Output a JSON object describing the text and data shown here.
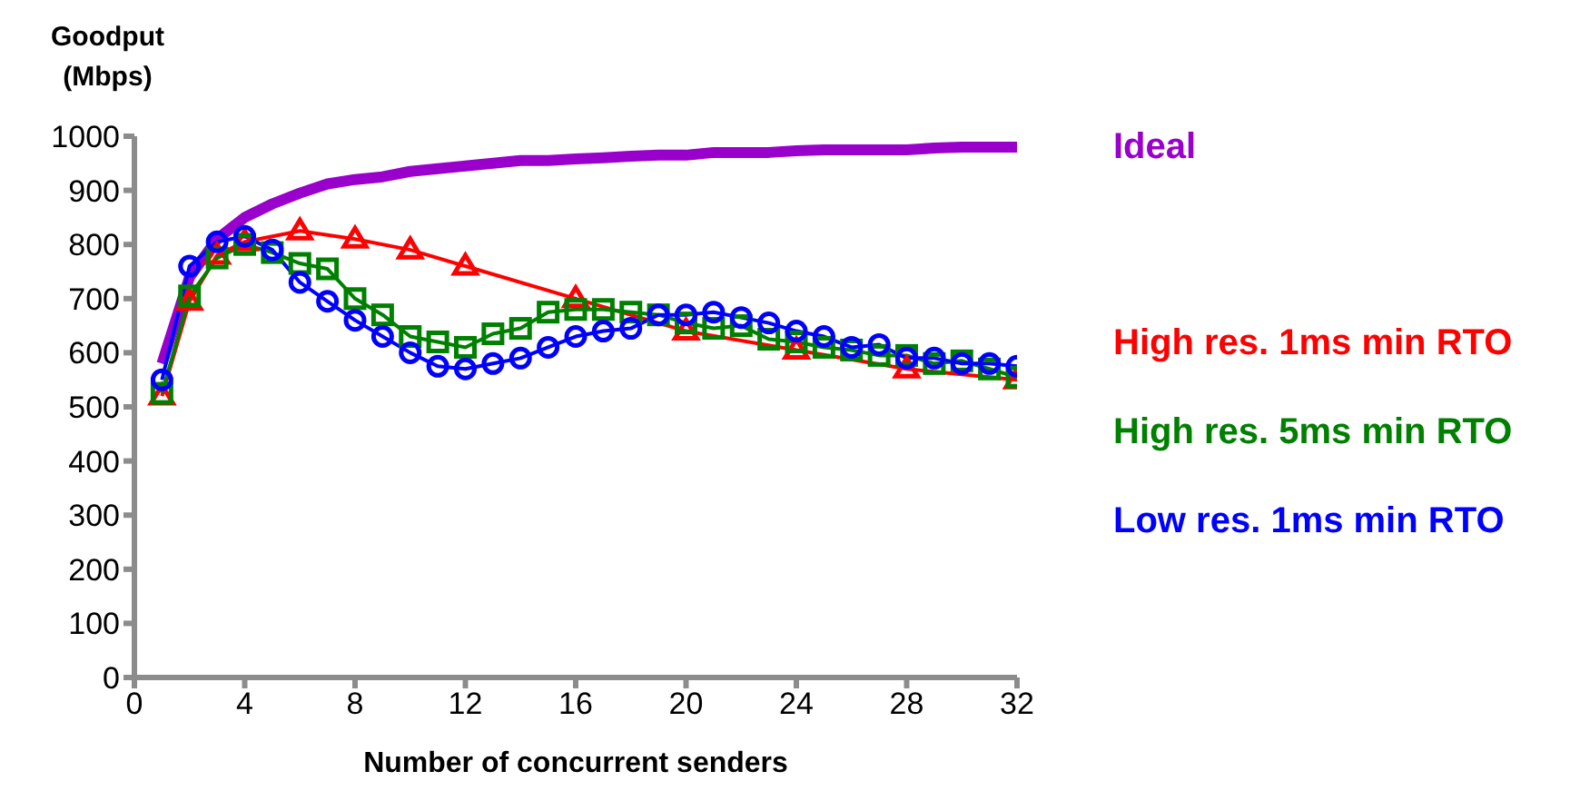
{
  "chart_data": {
    "type": "line",
    "xlabel": "Number of concurrent senders",
    "ylabel": "Goodput (Mbps)",
    "xlim": [
      0,
      32
    ],
    "xticks": [
      0,
      4,
      8,
      12,
      16,
      20,
      24,
      28,
      32
    ],
    "ylim": [
      0,
      1000
    ],
    "yticks": [
      0,
      100,
      200,
      300,
      400,
      500,
      600,
      700,
      800,
      900,
      1000
    ],
    "grid": false,
    "legend": "right",
    "line_style": "solid",
    "series": [
      {
        "name": "Ideal",
        "color": "#9900cc",
        "marker": "none",
        "x": [
          1,
          2,
          3,
          4,
          5,
          6,
          7,
          8,
          9,
          10,
          11,
          12,
          13,
          14,
          15,
          16,
          17,
          18,
          19,
          20,
          21,
          22,
          23,
          24,
          25,
          26,
          27,
          28,
          29,
          30,
          31,
          32
        ],
        "values": [
          580,
          740,
          810,
          850,
          875,
          895,
          912,
          920,
          925,
          935,
          940,
          945,
          950,
          955,
          955,
          958,
          960,
          963,
          965,
          965,
          970,
          970,
          970,
          973,
          975,
          975,
          975,
          975,
          978,
          980,
          980,
          980
        ]
      },
      {
        "name": "High res. 1ms min RTO",
        "color": "#ff0000",
        "marker": "triangle",
        "x": [
          1,
          2,
          3,
          4,
          6,
          8,
          10,
          12,
          16,
          20,
          24,
          28,
          32
        ],
        "values": [
          520,
          695,
          780,
          805,
          825,
          810,
          790,
          760,
          700,
          640,
          605,
          570,
          550
        ]
      },
      {
        "name": "High res. 5ms min RTO",
        "color": "#008000",
        "marker": "square",
        "x": [
          1,
          2,
          3,
          4,
          5,
          6,
          7,
          8,
          9,
          10,
          11,
          12,
          13,
          14,
          15,
          16,
          17,
          18,
          19,
          20,
          21,
          22,
          23,
          24,
          25,
          26,
          27,
          28,
          29,
          30,
          31,
          32
        ],
        "values": [
          525,
          705,
          775,
          800,
          785,
          765,
          755,
          700,
          670,
          630,
          620,
          610,
          635,
          645,
          675,
          680,
          680,
          675,
          670,
          655,
          645,
          650,
          625,
          620,
          610,
          605,
          595,
          595,
          580,
          585,
          570,
          555
        ]
      },
      {
        "name": "Low res. 1ms min RTO",
        "color": "#0000ff",
        "marker": "circle",
        "x": [
          1,
          2,
          3,
          4,
          5,
          6,
          7,
          8,
          9,
          10,
          11,
          12,
          13,
          14,
          15,
          16,
          17,
          18,
          19,
          20,
          21,
          22,
          23,
          24,
          25,
          26,
          27,
          28,
          29,
          30,
          31,
          32
        ],
        "values": [
          550,
          760,
          805,
          815,
          790,
          730,
          695,
          660,
          630,
          600,
          575,
          570,
          580,
          590,
          610,
          630,
          640,
          645,
          670,
          670,
          675,
          665,
          655,
          640,
          630,
          610,
          615,
          590,
          590,
          580,
          580,
          575
        ]
      }
    ]
  }
}
